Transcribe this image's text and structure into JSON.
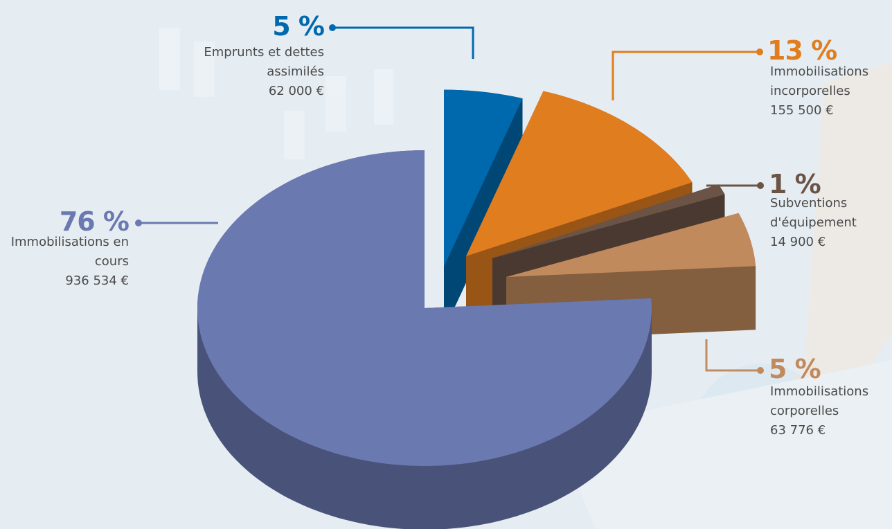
{
  "chart_data": {
    "type": "pie",
    "categories": [
      "Emprunts et dettes assimilés",
      "Immobilisations incorporelles",
      "Subventions d'équipement",
      "Immobilisations corporelles",
      "Immobilisations en cours"
    ],
    "values": [
      5,
      13,
      1,
      5,
      76
    ],
    "value_labels": [
      "5 %",
      "13 %",
      "1 %",
      "5 %",
      "76 %"
    ],
    "amounts": [
      "62 000 €",
      "155 500 €",
      "14 900 €",
      "63 776 €",
      "936 534 €"
    ],
    "colors": [
      "#0069ae",
      "#e07d1f",
      "#6b5446",
      "#c18a5d",
      "#6b79b1"
    ]
  }
}
